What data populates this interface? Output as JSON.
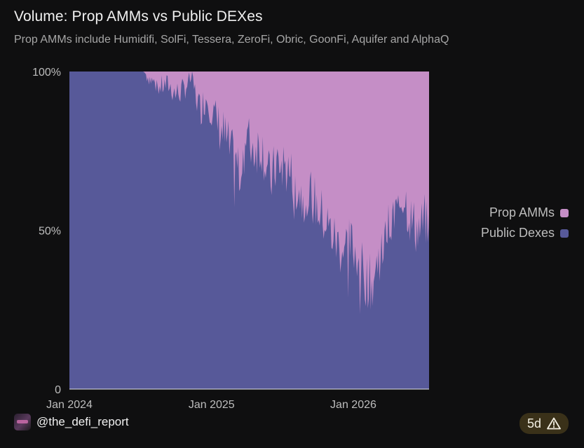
{
  "header": {
    "title": "Volume: Prop AMMs vs Public DEXes",
    "subtitle": "Prop AMMs include Humidifi, SolFi, Tessera, ZeroFi, Obric, GoonFi, Aquifer and AlphaQ"
  },
  "footer": {
    "handle": "@the_defi_report",
    "badge_label": "5d",
    "badge_icon": "warning-triangle-icon"
  },
  "colors": {
    "prop": "#c58ec6",
    "public": "#575999",
    "background": "#0f0f10",
    "tick": "#bdbdbd"
  },
  "chart_data": {
    "type": "area",
    "stacked": true,
    "percent": true,
    "title": "Volume: Prop AMMs vs Public DEXes",
    "subtitle": "Prop AMMs include Humidifi, SolFi, Tessera, ZeroFi, Obric, GoonFi, Aquifer and AlphaQ",
    "xlabel": "",
    "ylabel": "",
    "xlim": [
      "2024-01-01",
      "2026-07-15"
    ],
    "ylim": [
      0,
      100
    ],
    "xticks": [
      "Jan 2024",
      "Jan 2025",
      "Jan 2026"
    ],
    "yticks": [
      "0",
      "50%",
      "100%"
    ],
    "grid": false,
    "legend": "right",
    "series": [
      {
        "name": "Public Dexes",
        "color": "#575999",
        "x": [
          "2024-01-01",
          "2024-06-01",
          "2024-07-10",
          "2024-08-01",
          "2024-08-20",
          "2024-09-10",
          "2024-10-01",
          "2024-10-20",
          "2024-11-10",
          "2024-12-01",
          "2024-12-20",
          "2025-01-10",
          "2025-02-01",
          "2025-02-20",
          "2025-03-10",
          "2025-04-01",
          "2025-04-20",
          "2025-05-10",
          "2025-06-01",
          "2025-06-20",
          "2025-07-10",
          "2025-08-01",
          "2025-08-20",
          "2025-09-10",
          "2025-10-01",
          "2025-10-20",
          "2025-11-10",
          "2025-12-01",
          "2025-12-20",
          "2026-01-10",
          "2026-02-01",
          "2026-02-20",
          "2026-03-10",
          "2026-04-01",
          "2026-04-20",
          "2026-05-10",
          "2026-06-01",
          "2026-06-20",
          "2026-07-15"
        ],
        "values": [
          100,
          100,
          100,
          97,
          95,
          96,
          93,
          94,
          98,
          88,
          92,
          85,
          80,
          74,
          69,
          79,
          76,
          77,
          65,
          72,
          70,
          66,
          61,
          62,
          57,
          53,
          48,
          44,
          46,
          43,
          35,
          33,
          43,
          50,
          55,
          62,
          52,
          50,
          55
        ]
      },
      {
        "name": "Prop AMMs",
        "color": "#c58ec6",
        "x": [
          "2024-01-01",
          "2024-06-01",
          "2024-07-10",
          "2024-08-01",
          "2024-08-20",
          "2024-09-10",
          "2024-10-01",
          "2024-10-20",
          "2024-11-10",
          "2024-12-01",
          "2024-12-20",
          "2025-01-10",
          "2025-02-01",
          "2025-02-20",
          "2025-03-10",
          "2025-04-01",
          "2025-04-20",
          "2025-05-10",
          "2025-06-01",
          "2025-06-20",
          "2025-07-10",
          "2025-08-01",
          "2025-08-20",
          "2025-09-10",
          "2025-10-01",
          "2025-10-20",
          "2025-11-10",
          "2025-12-01",
          "2025-12-20",
          "2026-01-10",
          "2026-02-01",
          "2026-02-20",
          "2026-03-10",
          "2026-04-01",
          "2026-04-20",
          "2026-05-10",
          "2026-06-01",
          "2026-06-20",
          "2026-07-15"
        ],
        "values": [
          0,
          0,
          0,
          3,
          5,
          4,
          7,
          6,
          2,
          12,
          8,
          15,
          20,
          26,
          31,
          21,
          24,
          23,
          35,
          28,
          30,
          34,
          39,
          38,
          43,
          47,
          52,
          56,
          54,
          57,
          65,
          67,
          57,
          50,
          45,
          38,
          48,
          50,
          45
        ]
      }
    ]
  }
}
